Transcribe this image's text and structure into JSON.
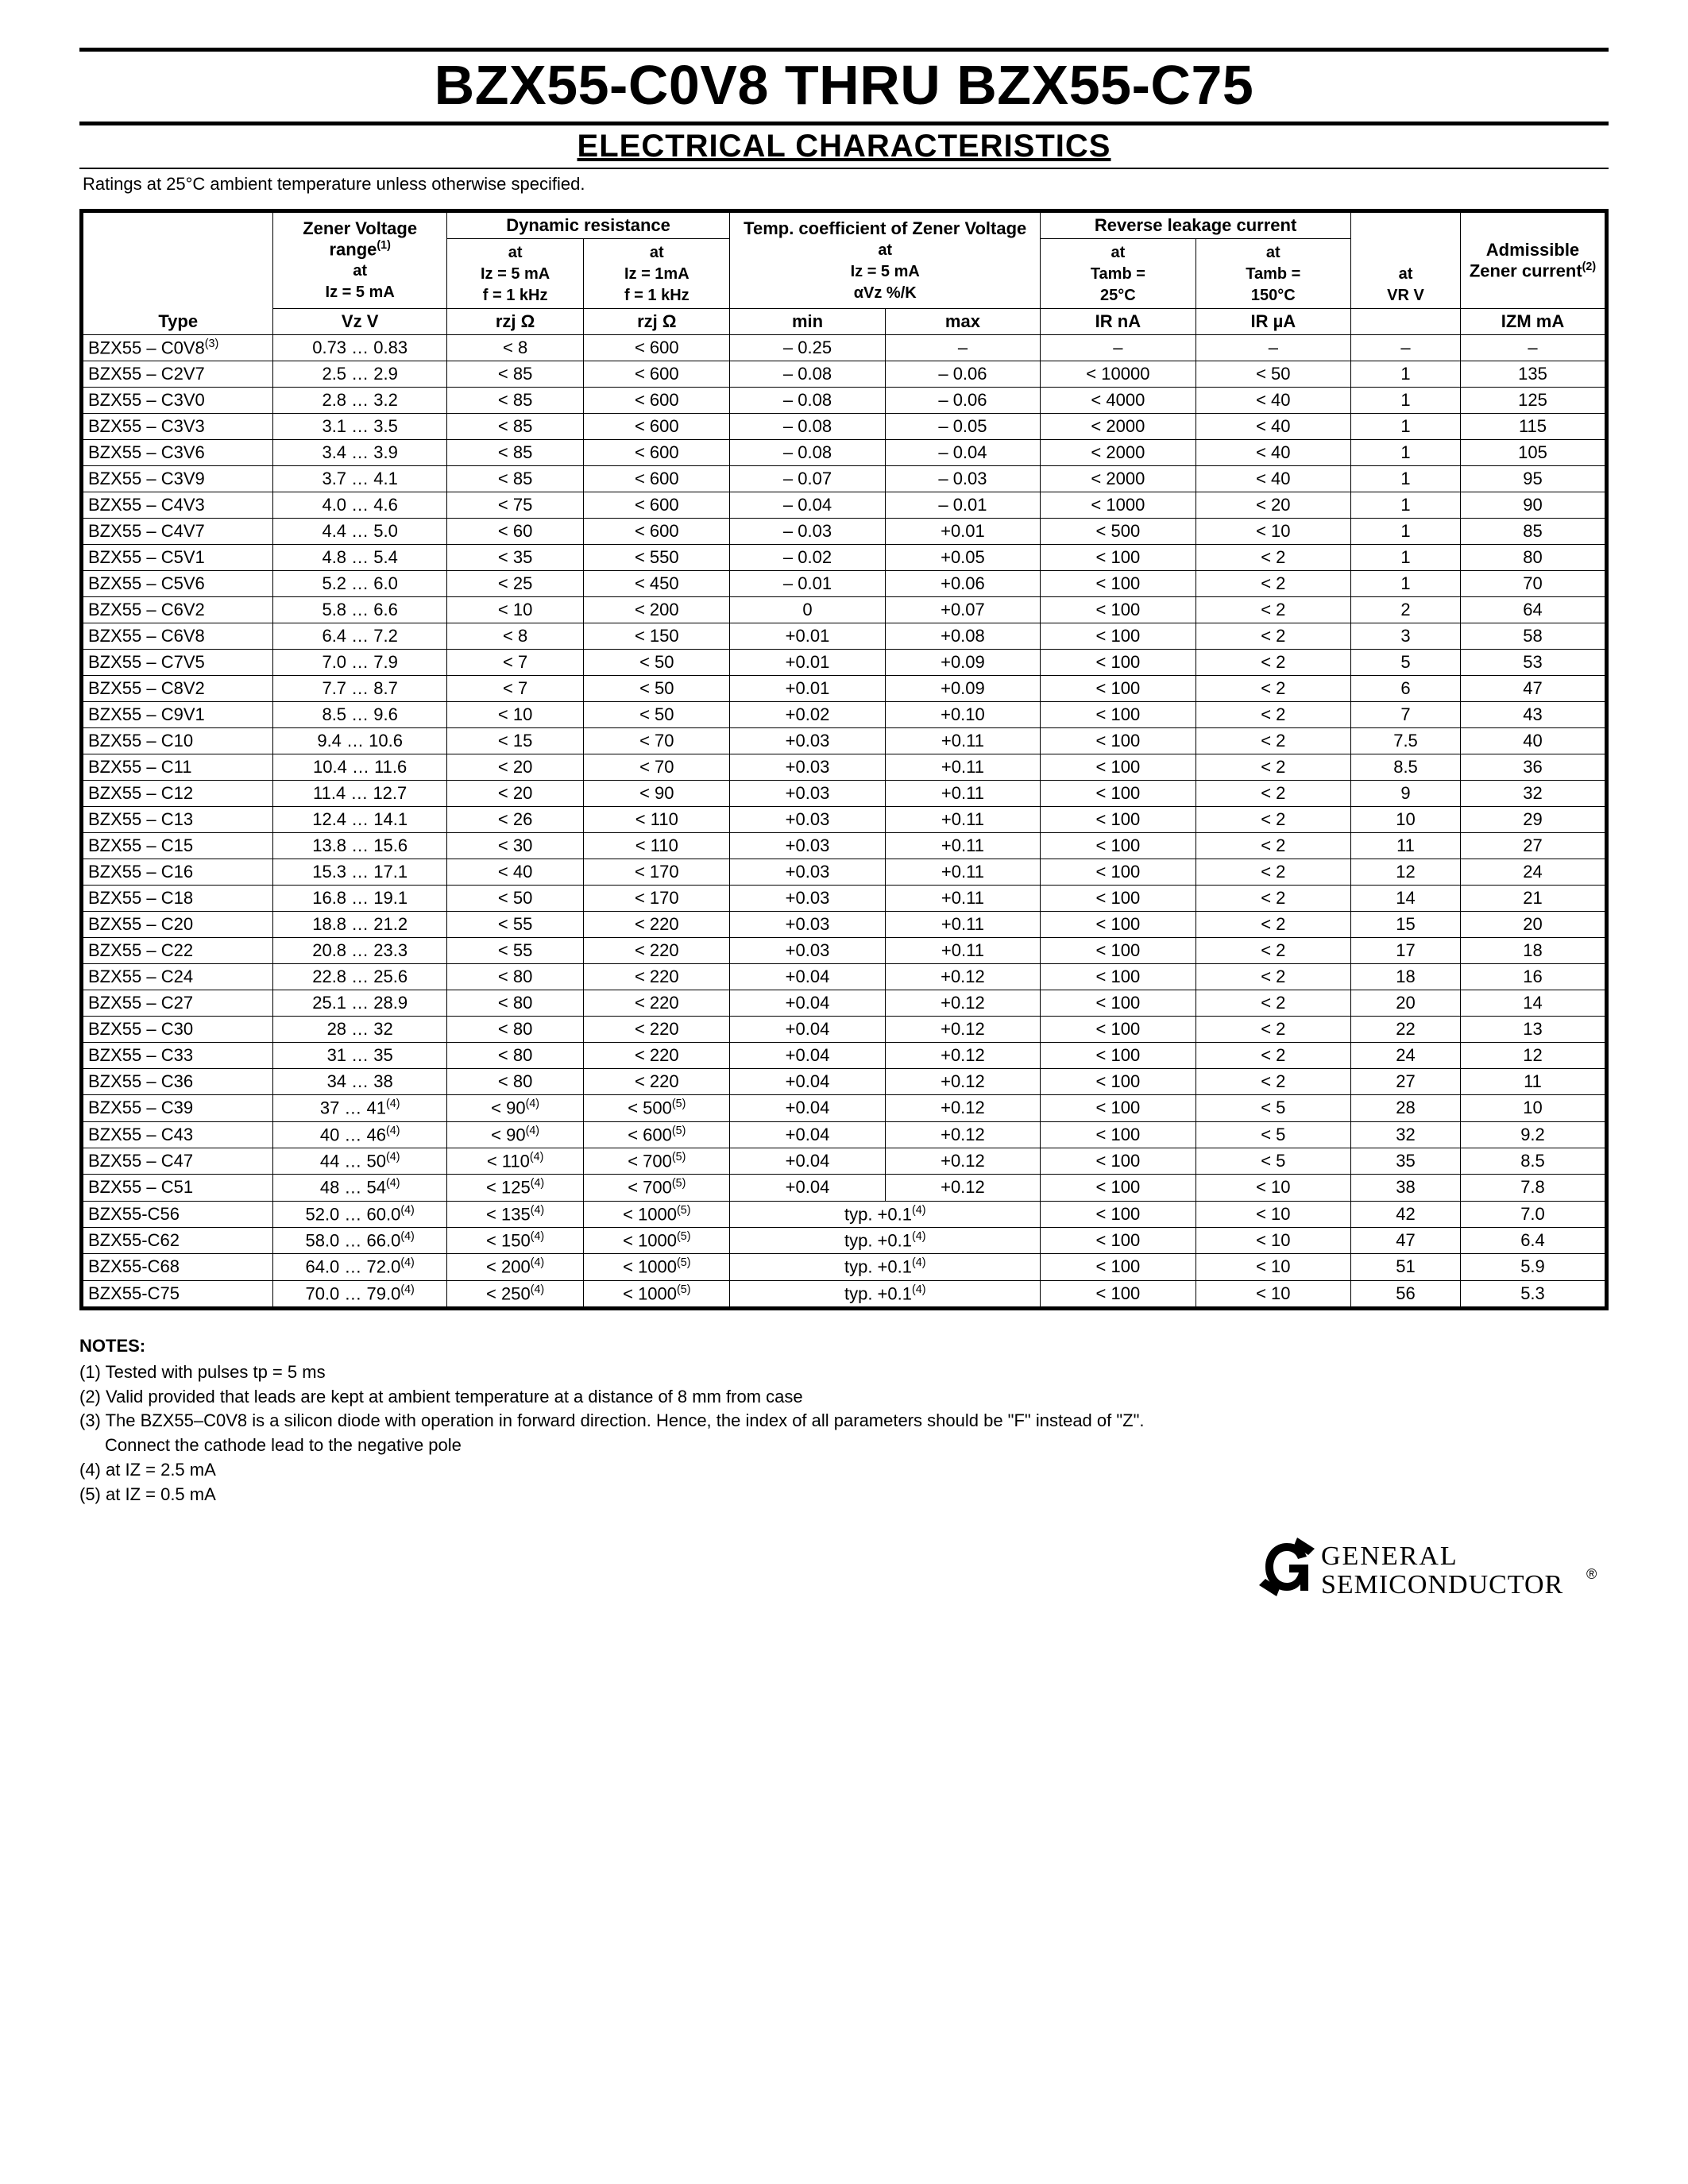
{
  "title": "BZX55-C0V8 THRU BZX55-C75",
  "subtitle": "ELECTRICAL CHARACTERISTICS",
  "ratings_note": "Ratings at 25°C ambient temperature unless otherwise specified.",
  "header": {
    "type": "Type",
    "zener_group": "Zener Voltage range",
    "zener_sup": "(1)",
    "zener_cond1": "at",
    "zener_cond2": "Iz = 5 mA",
    "zener_unit": "Vz V",
    "dyn_group": "Dynamic resistance",
    "dyn1_l1": "at",
    "dyn1_l2": "Iz = 5 mA",
    "dyn1_l3": "f = 1 kHz",
    "dyn1_unit": "rzj Ω",
    "dyn2_l1": "at",
    "dyn2_l2": "Iz = 1mA",
    "dyn2_l3": "f = 1 kHz",
    "dyn2_unit": "rzj Ω",
    "tc_group": "Temp. coefficient of Zener Voltage",
    "tc_l1": "at",
    "tc_l2": "Iz = 5 mA",
    "tc_l3": "αVz %/K",
    "tc_min": "min",
    "tc_max": "max",
    "rl_group": "Reverse leakage current",
    "rl25_l1": "at",
    "rl25_l2": "Tamb =",
    "rl25_l3": "25°C",
    "rl25_unit": "IR nA",
    "rl150_l1": "at",
    "rl150_l2": "Tamb =",
    "rl150_l3": "150°C",
    "rl150_unit": "IR µA",
    "vr_l1": "at",
    "vr_l2": "VR V",
    "izm_group": "Admissible Zener current",
    "izm_sup": "(2)",
    "izm_unit": "IZM mA"
  },
  "rows": [
    {
      "type": "BZX55 – C0V8",
      "tsup": "(3)",
      "vz": "0.73 … 0.83",
      "r1": "< 8",
      "r2": "< 600",
      "tcmin": "– 0.25",
      "tcmax": "–",
      "ir25": "–",
      "ir150": "–",
      "vr": "–",
      "izm": "–"
    },
    {
      "type": "BZX55 – C2V7",
      "vz": "2.5 … 2.9",
      "r1": "< 85",
      "r2": "< 600",
      "tcmin": "– 0.08",
      "tcmax": "– 0.06",
      "ir25": "< 10000",
      "ir150": "< 50",
      "vr": "1",
      "izm": "135"
    },
    {
      "type": "BZX55 – C3V0",
      "vz": "2.8 … 3.2",
      "r1": "< 85",
      "r2": "< 600",
      "tcmin": "– 0.08",
      "tcmax": "– 0.06",
      "ir25": "< 4000",
      "ir150": "< 40",
      "vr": "1",
      "izm": "125"
    },
    {
      "type": "BZX55 – C3V3",
      "vz": "3.1 … 3.5",
      "r1": "< 85",
      "r2": "< 600",
      "tcmin": "– 0.08",
      "tcmax": "– 0.05",
      "ir25": "< 2000",
      "ir150": "< 40",
      "vr": "1",
      "izm": "115"
    },
    {
      "type": "BZX55 – C3V6",
      "vz": "3.4 … 3.9",
      "r1": "< 85",
      "r2": "< 600",
      "tcmin": "– 0.08",
      "tcmax": "– 0.04",
      "ir25": "< 2000",
      "ir150": "< 40",
      "vr": "1",
      "izm": "105"
    },
    {
      "type": "BZX55 – C3V9",
      "vz": "3.7 … 4.1",
      "r1": "< 85",
      "r2": "< 600",
      "tcmin": "– 0.07",
      "tcmax": "– 0.03",
      "ir25": "< 2000",
      "ir150": "< 40",
      "vr": "1",
      "izm": "95"
    },
    {
      "type": "BZX55 – C4V3",
      "vz": "4.0 … 4.6",
      "r1": "< 75",
      "r2": "< 600",
      "tcmin": "– 0.04",
      "tcmax": "– 0.01",
      "ir25": "< 1000",
      "ir150": "< 20",
      "vr": "1",
      "izm": "90"
    },
    {
      "type": "BZX55 – C4V7",
      "vz": "4.4 … 5.0",
      "r1": "< 60",
      "r2": "< 600",
      "tcmin": "– 0.03",
      "tcmax": "+0.01",
      "ir25": "< 500",
      "ir150": "< 10",
      "vr": "1",
      "izm": "85"
    },
    {
      "type": "BZX55 – C5V1",
      "vz": "4.8 … 5.4",
      "r1": "< 35",
      "r2": "< 550",
      "tcmin": "– 0.02",
      "tcmax": "+0.05",
      "ir25": "< 100",
      "ir150": "< 2",
      "vr": "1",
      "izm": "80"
    },
    {
      "type": "BZX55 – C5V6",
      "vz": "5.2 … 6.0",
      "r1": "< 25",
      "r2": "< 450",
      "tcmin": "– 0.01",
      "tcmax": "+0.06",
      "ir25": "< 100",
      "ir150": "< 2",
      "vr": "1",
      "izm": "70"
    },
    {
      "type": "BZX55 – C6V2",
      "vz": "5.8 … 6.6",
      "r1": "< 10",
      "r2": "< 200",
      "tcmin": "0",
      "tcmax": "+0.07",
      "ir25": "< 100",
      "ir150": "< 2",
      "vr": "2",
      "izm": "64"
    },
    {
      "type": "BZX55 – C6V8",
      "vz": "6.4 … 7.2",
      "r1": "< 8",
      "r2": "< 150",
      "tcmin": "+0.01",
      "tcmax": "+0.08",
      "ir25": "< 100",
      "ir150": "< 2",
      "vr": "3",
      "izm": "58"
    },
    {
      "type": "BZX55 – C7V5",
      "vz": "7.0 … 7.9",
      "r1": "< 7",
      "r2": "< 50",
      "tcmin": "+0.01",
      "tcmax": "+0.09",
      "ir25": "< 100",
      "ir150": "< 2",
      "vr": "5",
      "izm": "53"
    },
    {
      "type": "BZX55 – C8V2",
      "vz": "7.7 … 8.7",
      "r1": "< 7",
      "r2": "< 50",
      "tcmin": "+0.01",
      "tcmax": "+0.09",
      "ir25": "< 100",
      "ir150": "< 2",
      "vr": "6",
      "izm": "47"
    },
    {
      "type": "BZX55 – C9V1",
      "vz": "8.5 … 9.6",
      "r1": "< 10",
      "r2": "< 50",
      "tcmin": "+0.02",
      "tcmax": "+0.10",
      "ir25": "< 100",
      "ir150": "< 2",
      "vr": "7",
      "izm": "43"
    },
    {
      "type": "BZX55 – C10",
      "vz": "9.4 … 10.6",
      "r1": "< 15",
      "r2": "< 70",
      "tcmin": "+0.03",
      "tcmax": "+0.11",
      "ir25": "< 100",
      "ir150": "< 2",
      "vr": "7.5",
      "izm": "40"
    },
    {
      "type": "BZX55 – C11",
      "vz": "10.4 … 11.6",
      "r1": "< 20",
      "r2": "< 70",
      "tcmin": "+0.03",
      "tcmax": "+0.11",
      "ir25": "< 100",
      "ir150": "< 2",
      "vr": "8.5",
      "izm": "36"
    },
    {
      "type": "BZX55 – C12",
      "vz": "11.4 … 12.7",
      "r1": "< 20",
      "r2": "< 90",
      "tcmin": "+0.03",
      "tcmax": "+0.11",
      "ir25": "< 100",
      "ir150": "< 2",
      "vr": "9",
      "izm": "32"
    },
    {
      "type": "BZX55 – C13",
      "vz": "12.4 … 14.1",
      "r1": "< 26",
      "r2": "< 110",
      "tcmin": "+0.03",
      "tcmax": "+0.11",
      "ir25": "< 100",
      "ir150": "< 2",
      "vr": "10",
      "izm": "29"
    },
    {
      "type": "BZX55 – C15",
      "vz": "13.8 … 15.6",
      "r1": "< 30",
      "r2": "< 110",
      "tcmin": "+0.03",
      "tcmax": "+0.11",
      "ir25": "< 100",
      "ir150": "< 2",
      "vr": "11",
      "izm": "27"
    },
    {
      "type": "BZX55 – C16",
      "vz": "15.3 … 17.1",
      "r1": "< 40",
      "r2": "< 170",
      "tcmin": "+0.03",
      "tcmax": "+0.11",
      "ir25": "< 100",
      "ir150": "< 2",
      "vr": "12",
      "izm": "24"
    },
    {
      "type": "BZX55 – C18",
      "vz": "16.8 … 19.1",
      "r1": "< 50",
      "r2": "< 170",
      "tcmin": "+0.03",
      "tcmax": "+0.11",
      "ir25": "< 100",
      "ir150": "< 2",
      "vr": "14",
      "izm": "21"
    },
    {
      "type": "BZX55 – C20",
      "vz": "18.8 … 21.2",
      "r1": "< 55",
      "r2": "< 220",
      "tcmin": "+0.03",
      "tcmax": "+0.11",
      "ir25": "< 100",
      "ir150": "< 2",
      "vr": "15",
      "izm": "20"
    },
    {
      "type": "BZX55 – C22",
      "vz": "20.8 … 23.3",
      "r1": "< 55",
      "r2": "< 220",
      "tcmin": "+0.03",
      "tcmax": "+0.11",
      "ir25": "< 100",
      "ir150": "< 2",
      "vr": "17",
      "izm": "18"
    },
    {
      "type": "BZX55 – C24",
      "vz": "22.8 … 25.6",
      "r1": "< 80",
      "r2": "< 220",
      "tcmin": "+0.04",
      "tcmax": "+0.12",
      "ir25": "< 100",
      "ir150": "< 2",
      "vr": "18",
      "izm": "16"
    },
    {
      "type": "BZX55 – C27",
      "vz": "25.1 … 28.9",
      "r1": "< 80",
      "r2": "< 220",
      "tcmin": "+0.04",
      "tcmax": "+0.12",
      "ir25": "< 100",
      "ir150": "< 2",
      "vr": "20",
      "izm": "14"
    },
    {
      "type": "BZX55 – C30",
      "vz": "28 … 32",
      "r1": "< 80",
      "r2": "< 220",
      "tcmin": "+0.04",
      "tcmax": "+0.12",
      "ir25": "< 100",
      "ir150": "< 2",
      "vr": "22",
      "izm": "13"
    },
    {
      "type": "BZX55 – C33",
      "vz": "31 … 35",
      "r1": "< 80",
      "r2": "< 220",
      "tcmin": "+0.04",
      "tcmax": "+0.12",
      "ir25": "< 100",
      "ir150": "< 2",
      "vr": "24",
      "izm": "12"
    },
    {
      "type": "BZX55 – C36",
      "vz": "34 … 38",
      "r1": "< 80",
      "r2": "< 220",
      "tcmin": "+0.04",
      "tcmax": "+0.12",
      "ir25": "< 100",
      "ir150": "< 2",
      "vr": "27",
      "izm": "11"
    },
    {
      "type": "BZX55 – C39",
      "vz": "37 … 41",
      "vsup": "(4)",
      "r1": "< 90",
      "r1sup": "(4)",
      "r2": "< 500",
      "r2sup": "(5)",
      "tcmin": "+0.04",
      "tcmax": "+0.12",
      "ir25": "< 100",
      "ir150": "< 5",
      "vr": "28",
      "izm": "10"
    },
    {
      "type": "BZX55 – C43",
      "vz": "40 … 46",
      "vsup": "(4)",
      "r1": "< 90",
      "r1sup": "(4)",
      "r2": "< 600",
      "r2sup": "(5)",
      "tcmin": "+0.04",
      "tcmax": "+0.12",
      "ir25": "< 100",
      "ir150": "< 5",
      "vr": "32",
      "izm": "9.2"
    },
    {
      "type": "BZX55 – C47",
      "vz": "44 … 50",
      "vsup": "(4)",
      "r1": "< 110",
      "r1sup": "(4)",
      "r2": "< 700",
      "r2sup": "(5)",
      "tcmin": "+0.04",
      "tcmax": "+0.12",
      "ir25": "< 100",
      "ir150": "< 5",
      "vr": "35",
      "izm": "8.5"
    },
    {
      "type": "BZX55 – C51",
      "vz": "48 … 54",
      "vsup": "(4)",
      "r1": "< 125",
      "r1sup": "(4)",
      "r2": "< 700",
      "r2sup": "(5)",
      "tcmin": "+0.04",
      "tcmax": "+0.12",
      "ir25": "< 100",
      "ir150": "< 10",
      "vr": "38",
      "izm": "7.8"
    },
    {
      "type": "BZX55-C56",
      "vz": "52.0 … 60.0",
      "vsup": "(4)",
      "r1": "< 135",
      "r1sup": "(4)",
      "r2": "< 1000",
      "r2sup": "(5)",
      "tc_span": "typ. +0.1",
      "tc_sup": "(4)",
      "ir25": "< 100",
      "ir150": "< 10",
      "vr": "42",
      "izm": "7.0"
    },
    {
      "type": "BZX55-C62",
      "vz": "58.0 … 66.0",
      "vsup": "(4)",
      "r1": "< 150",
      "r1sup": "(4)",
      "r2": "< 1000",
      "r2sup": "(5)",
      "tc_span": "typ. +0.1",
      "tc_sup": "(4)",
      "ir25": "< 100",
      "ir150": "< 10",
      "vr": "47",
      "izm": "6.4"
    },
    {
      "type": "BZX55-C68",
      "vz": "64.0 … 72.0",
      "vsup": "(4)",
      "r1": "< 200",
      "r1sup": "(4)",
      "r2": "< 1000",
      "r2sup": "(5)",
      "tc_span": "typ. +0.1",
      "tc_sup": "(4)",
      "ir25": "< 100",
      "ir150": "< 10",
      "vr": "51",
      "izm": "5.9"
    },
    {
      "type": "BZX55-C75",
      "vz": "70.0 … 79.0",
      "vsup": "(4)",
      "r1": "< 250",
      "r1sup": "(4)",
      "r2": "< 1000",
      "r2sup": "(5)",
      "tc_span": "typ. +0.1",
      "tc_sup": "(4)",
      "ir25": "< 100",
      "ir150": "< 10",
      "vr": "56",
      "izm": "5.3"
    }
  ],
  "notes": {
    "title": "NOTES:",
    "n1": "(1) Tested with pulses tp = 5 ms",
    "n2": "(2) Valid provided that leads are kept at ambient temperature at a distance of 8 mm from case",
    "n3a": "(3) The BZX55–C0V8 is a silicon diode with operation in forward direction. Hence, the index of all parameters should be \"F\" instead of \"Z\".",
    "n3b": "Connect the cathode lead to the negative pole",
    "n4": "(4) at IZ = 2.5 mA",
    "n5": "(5) at IZ = 0.5 mA"
  },
  "logo": {
    "line1": "GENERAL",
    "line2": "SEMICONDUCTOR",
    "reg": "®"
  }
}
